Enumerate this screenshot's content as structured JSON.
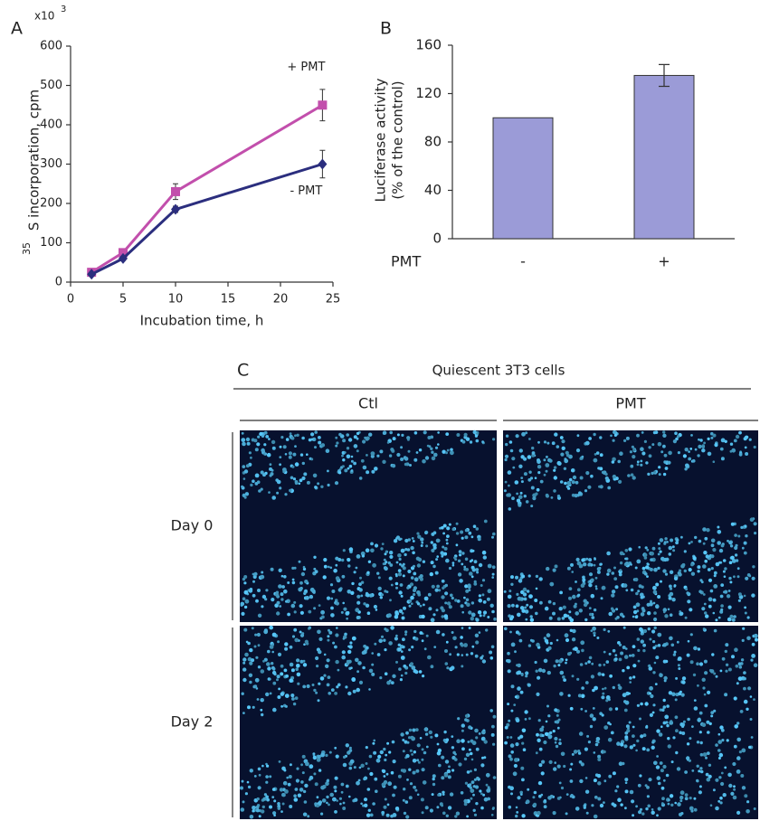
{
  "chart_data": [
    {
      "type": "line",
      "panel": "A",
      "y_scale_base": "x10",
      "y_scale_exp": "3",
      "ylabel_sup": "35",
      "ylabel": "S incorporation, cpm",
      "xlabel": "Incubation time, h",
      "xlim": [
        0,
        25
      ],
      "xticks": [
        0,
        5,
        10,
        15,
        20,
        25
      ],
      "ylim": [
        0,
        600
      ],
      "yticks": [
        0,
        100,
        200,
        300,
        400,
        500,
        600
      ],
      "x": [
        2,
        5,
        10,
        24
      ],
      "series": [
        {
          "name": "+ PMT",
          "color": "#c24fac",
          "marker": "square",
          "values": [
            25,
            75,
            230,
            450
          ],
          "errors": [
            5,
            8,
            20,
            40
          ]
        },
        {
          "name": "- PMT",
          "color": "#2b2e7e",
          "marker": "diamond",
          "values": [
            20,
            60,
            185,
            300
          ],
          "errors": [
            4,
            5,
            8,
            35
          ]
        }
      ]
    },
    {
      "type": "bar",
      "panel": "B",
      "ylabel": [
        "Luciferase activity",
        "(% of the control)"
      ],
      "xlabel": "PMT",
      "categories": [
        "-",
        "+"
      ],
      "values": [
        100,
        135
      ],
      "errors": [
        null,
        9
      ],
      "color": "#9b9bd7",
      "ylim": [
        0,
        160
      ],
      "yticks": [
        0,
        40,
        80,
        120,
        160
      ]
    }
  ],
  "panel_c": {
    "panel": "C",
    "title": "Quiescent 3T3 cells",
    "columns": [
      "Ctl",
      "PMT"
    ],
    "rows": [
      "Day 0",
      "Day 2"
    ]
  }
}
